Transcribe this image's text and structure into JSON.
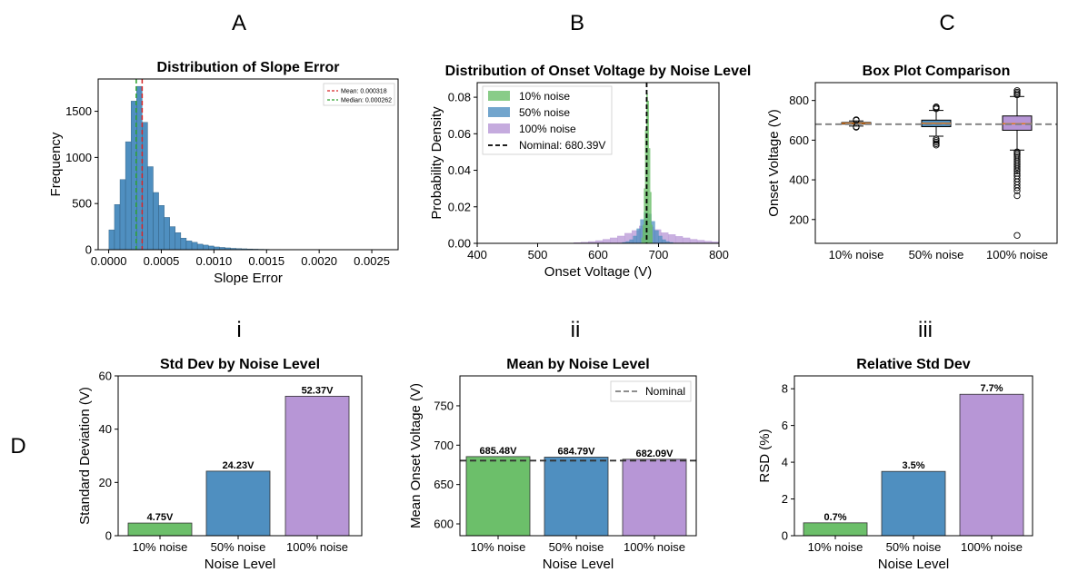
{
  "panel_labels": {
    "A": "A",
    "B": "B",
    "C": "C",
    "i": "i",
    "ii": "ii",
    "iii": "iii",
    "D": "D"
  },
  "chart_data": [
    {
      "id": "hist",
      "type": "bar",
      "title": "Distribution of Slope Error",
      "xlabel": "Slope Error",
      "ylabel": "Frequency",
      "xlim": [
        -0.0001,
        0.00275
      ],
      "ylim": [
        0,
        1850
      ],
      "xticks": [
        0,
        0.0005,
        0.001,
        0.0015,
        0.002,
        0.0025
      ],
      "xtick_labels": [
        "0.0000",
        "0.0005",
        "0.0010",
        "0.0015",
        "0.0020",
        "0.0025"
      ],
      "yticks": [
        0,
        500,
        1000,
        1500
      ],
      "bin_width": 5.25e-05,
      "bin_start": 2.5e-06,
      "values": [
        215,
        490,
        760,
        1170,
        1610,
        1770,
        1380,
        900,
        620,
        480,
        350,
        250,
        185,
        125,
        95,
        80,
        60,
        50,
        40,
        30,
        25,
        20,
        15,
        12,
        10,
        8,
        6,
        5,
        4,
        3,
        3,
        2,
        2,
        2,
        1,
        1,
        1,
        1,
        1,
        1,
        1,
        1,
        1,
        1,
        1,
        1,
        1,
        1,
        1,
        1
      ],
      "color": "#4f8fc0",
      "mean": 0.000318,
      "median": 0.000262,
      "legend": [
        "Mean: 0.000318",
        "Median: 0.000262"
      ],
      "legend_position": "top-right"
    },
    {
      "id": "density",
      "type": "bar",
      "title": "Distribution of Onset Voltage by Noise Level",
      "xlabel": "Onset Voltage (V)",
      "ylabel": "Probability Density",
      "xlim": [
        400,
        800
      ],
      "ylim": [
        0,
        0.088
      ],
      "xticks": [
        400,
        500,
        600,
        700,
        800
      ],
      "yticks": [
        0,
        0.02,
        0.04,
        0.06,
        0.08
      ],
      "ytick_labels": [
        "0.00",
        "0.02",
        "0.04",
        "0.06",
        "0.08"
      ],
      "nominal": 680.39,
      "legend": [
        "10% noise",
        "50% noise",
        "100% noise",
        "Nominal: 680.39V"
      ],
      "legend_position": "upper left",
      "series": [
        {
          "name": "100% noise",
          "color": "#b796d6",
          "bin_width": 12,
          "x_start": 560,
          "values": [
            0.0004,
            0.0006,
            0.001,
            0.0015,
            0.0022,
            0.003,
            0.004,
            0.0055,
            0.007,
            0.0095,
            0.009,
            0.0075,
            0.0058,
            0.0048,
            0.0038,
            0.003,
            0.0022,
            0.0017,
            0.0012,
            0.0008
          ]
        },
        {
          "name": "50% noise",
          "color": "#4f8fc0",
          "bin_width": 6,
          "x_start": 640,
          "values": [
            0.0005,
            0.001,
            0.002,
            0.004,
            0.008,
            0.013,
            0.017,
            0.016,
            0.012,
            0.007,
            0.004,
            0.002,
            0.001,
            0.0005
          ]
        },
        {
          "name": "10% noise",
          "color": "#6cbf6a",
          "bin_width": 2,
          "x_start": 672,
          "values": [
            0.003,
            0.01,
            0.03,
            0.062,
            0.082,
            0.078,
            0.052,
            0.028,
            0.01
          ]
        }
      ]
    },
    {
      "id": "box",
      "type": "box",
      "title": "Box Plot Comparison",
      "xlabel": "",
      "ylabel": "Onset Voltage (V)",
      "ylim": [
        80,
        890
      ],
      "yticks": [
        200,
        400,
        600,
        800
      ],
      "categories": [
        "10% noise",
        "50% noise",
        "100% noise"
      ],
      "nominal": 680.39,
      "boxes": [
        {
          "name": "10% noise",
          "color": "#6cbf6a",
          "whislo": 671,
          "q1": 681,
          "med": 685,
          "q3": 689,
          "whishi": 697,
          "fliers": [
            665,
            668,
            700,
            703
          ]
        },
        {
          "name": "50% noise",
          "color": "#4f8fc0",
          "whislo": 620,
          "q1": 668,
          "med": 685,
          "q3": 701,
          "whishi": 750,
          "fliers": [
            575,
            582,
            590,
            598,
            606,
            758,
            763,
            768
          ]
        },
        {
          "name": "100% noise",
          "color": "#b796d6",
          "whislo": 550,
          "q1": 650,
          "med": 683,
          "q3": 722,
          "whishi": 820,
          "fliers": [
            120,
            320,
            345,
            360,
            375,
            390,
            405,
            420,
            432,
            445,
            455,
            465,
            475,
            485,
            495,
            505,
            515,
            525,
            533,
            541,
            828,
            835,
            842,
            850
          ]
        }
      ]
    },
    {
      "id": "std",
      "type": "bar",
      "title": "Std Dev by Noise Level",
      "xlabel": "Noise Level",
      "ylabel": "Standard Deviation (V)",
      "ylim": [
        0,
        60
      ],
      "yticks": [
        0,
        20,
        40,
        60
      ],
      "categories": [
        "10% noise",
        "50% noise",
        "100% noise"
      ],
      "values": [
        4.75,
        24.23,
        52.37
      ],
      "bar_labels": [
        "4.75V",
        "24.23V",
        "52.37V"
      ],
      "colors": [
        "#6cbf6a",
        "#4f8fc0",
        "#b796d6"
      ]
    },
    {
      "id": "mean",
      "type": "bar",
      "title": "Mean by Noise Level",
      "xlabel": "Noise Level",
      "ylabel": "Mean Onset Voltage (V)",
      "ylim": [
        585,
        788
      ],
      "yticks": [
        600,
        650,
        700,
        750
      ],
      "categories": [
        "10% noise",
        "50% noise",
        "100% noise"
      ],
      "values": [
        685.48,
        684.79,
        682.09
      ],
      "bar_labels": [
        "685.48V",
        "684.79V",
        "682.09V"
      ],
      "colors": [
        "#6cbf6a",
        "#4f8fc0",
        "#b796d6"
      ],
      "nominal": 680.39,
      "legend": [
        "Nominal"
      ],
      "legend_position": "top-right"
    },
    {
      "id": "rsd",
      "type": "bar",
      "title": "Relative Std Dev",
      "xlabel": "Noise Level",
      "ylabel": "RSD (%)",
      "ylim": [
        0,
        8.7
      ],
      "yticks": [
        0,
        2,
        4,
        6,
        8
      ],
      "categories": [
        "10% noise",
        "50% noise",
        "100% noise"
      ],
      "values": [
        0.7,
        3.5,
        7.7
      ],
      "bar_labels": [
        "0.7%",
        "3.5%",
        "7.7%"
      ],
      "colors": [
        "#6cbf6a",
        "#4f8fc0",
        "#b796d6"
      ]
    }
  ]
}
